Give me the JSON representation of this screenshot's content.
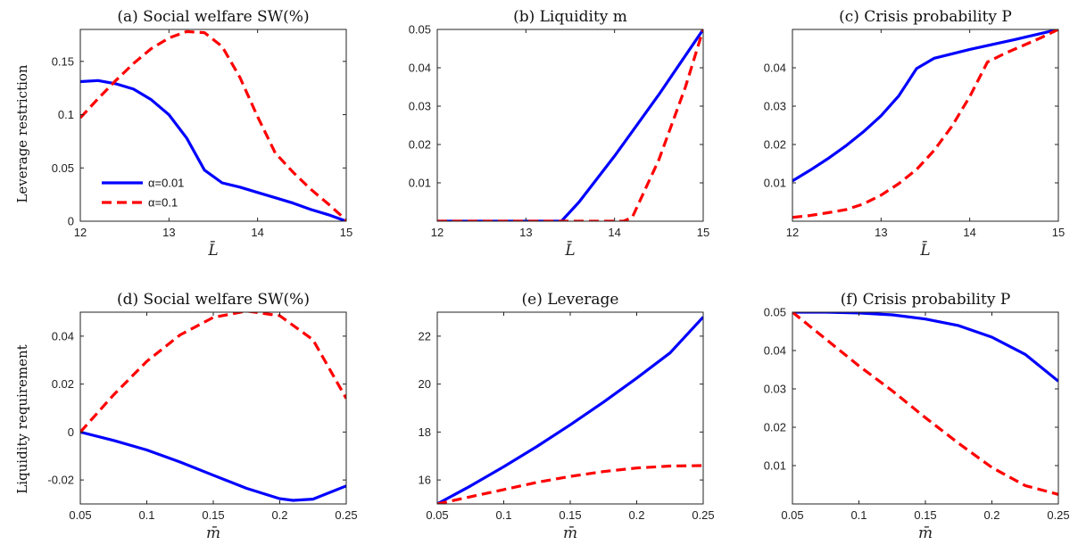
{
  "row_labels": [
    "Leverage restriction",
    "Liquidity requirement"
  ],
  "legend": {
    "position": "lower-left of panel (a)",
    "entries": [
      {
        "label": "α=0.01",
        "color": "#0000ff",
        "style": "solid"
      },
      {
        "label": "α=0.1",
        "color": "#ff0000",
        "style": "dashed"
      }
    ]
  },
  "chart_data": [
    {
      "type": "line",
      "title": "(a) Social welfare SW(%)",
      "xlabel": "L̄",
      "xlim": [
        12,
        15
      ],
      "ylim": [
        0,
        0.18
      ],
      "xticks": [
        12,
        13,
        14,
        15
      ],
      "xtick_labels": [
        "12",
        "13",
        "14",
        "15"
      ],
      "yticks": [
        0,
        0.05,
        0.1,
        0.15
      ],
      "ytick_labels": [
        "0",
        "0.05",
        "0.1",
        "0.15"
      ],
      "series": [
        {
          "name": "α=0.01",
          "color": "#0000ff",
          "dash": false,
          "x": [
            12,
            12.2,
            12.4,
            12.6,
            12.8,
            13.0,
            13.2,
            13.4,
            13.6,
            13.8,
            14.0,
            14.2,
            14.4,
            14.6,
            14.8,
            15.0
          ],
          "y": [
            0.131,
            0.132,
            0.129,
            0.124,
            0.114,
            0.1,
            0.078,
            0.048,
            0.036,
            0.032,
            0.027,
            0.022,
            0.017,
            0.011,
            0.006,
            0.0
          ]
        },
        {
          "name": "α=0.1",
          "color": "#ff0000",
          "dash": true,
          "x": [
            12,
            12.2,
            12.4,
            12.6,
            12.8,
            13.0,
            13.2,
            13.4,
            13.6,
            13.8,
            14.0,
            14.2,
            14.4,
            14.6,
            14.8,
            15.0
          ],
          "y": [
            0.097,
            0.115,
            0.132,
            0.148,
            0.162,
            0.172,
            0.178,
            0.177,
            0.164,
            0.135,
            0.098,
            0.064,
            0.046,
            0.03,
            0.016,
            0.001
          ]
        }
      ]
    },
    {
      "type": "line",
      "title": "(b) Liquidity m",
      "xlabel": "L̄",
      "xlim": [
        12,
        15
      ],
      "ylim": [
        0,
        0.05
      ],
      "xticks": [
        12,
        13,
        14,
        15
      ],
      "xtick_labels": [
        "12",
        "13",
        "14",
        "15"
      ],
      "yticks": [
        0.01,
        0.02,
        0.03,
        0.04,
        0.05
      ],
      "ytick_labels": [
        "0.01",
        "0.02",
        "0.03",
        "0.04",
        "0.05"
      ],
      "series": [
        {
          "name": "α=0.01",
          "color": "#0000ff",
          "dash": false,
          "x": [
            12,
            13.4,
            13.6,
            14.0,
            14.5,
            15.0
          ],
          "y": [
            0,
            0,
            0.005,
            0.017,
            0.033,
            0.05
          ]
        },
        {
          "name": "α=0.1",
          "color": "#ff0000",
          "dash": true,
          "x": [
            12,
            14.1,
            14.2,
            14.5,
            14.8,
            15.0
          ],
          "y": [
            0,
            0,
            0.001,
            0.016,
            0.035,
            0.05
          ]
        }
      ]
    },
    {
      "type": "line",
      "title": "(c) Crisis probability P",
      "xlabel": "L̄",
      "xlim": [
        12,
        15
      ],
      "ylim": [
        0,
        0.05
      ],
      "xticks": [
        12,
        13,
        14,
        15
      ],
      "xtick_labels": [
        "12",
        "13",
        "14",
        "15"
      ],
      "yticks": [
        0.01,
        0.02,
        0.03,
        0.04
      ],
      "ytick_labels": [
        "0.01",
        "0.02",
        "0.03",
        "0.04"
      ],
      "series": [
        {
          "name": "α=0.01",
          "color": "#0000ff",
          "dash": false,
          "x": [
            12,
            12.2,
            12.4,
            12.6,
            12.8,
            13.0,
            13.2,
            13.4,
            13.6,
            14.0,
            14.5,
            15.0
          ],
          "y": [
            0.0105,
            0.0133,
            0.0163,
            0.0196,
            0.0233,
            0.0275,
            0.0327,
            0.0398,
            0.0425,
            0.0448,
            0.0473,
            0.05
          ]
        },
        {
          "name": "α=0.1",
          "color": "#ff0000",
          "dash": true,
          "x": [
            12,
            12.2,
            12.4,
            12.6,
            12.8,
            13.0,
            13.2,
            13.4,
            13.6,
            13.8,
            14.0,
            14.2,
            14.4,
            14.6,
            14.8,
            15.0
          ],
          "y": [
            0.001,
            0.0015,
            0.0022,
            0.003,
            0.0045,
            0.0068,
            0.0098,
            0.0135,
            0.0185,
            0.0248,
            0.0325,
            0.0415,
            0.0438,
            0.0458,
            0.0478,
            0.05
          ]
        }
      ]
    },
    {
      "type": "line",
      "title": "(d) Social welfare SW(%)",
      "xlabel": "m̄",
      "xlim": [
        0.05,
        0.25
      ],
      "ylim": [
        -0.03,
        0.05
      ],
      "xticks": [
        0.05,
        0.1,
        0.15,
        0.2,
        0.25
      ],
      "xtick_labels": [
        "0.05",
        "0.1",
        "0.15",
        "0.2",
        "0.25"
      ],
      "yticks": [
        -0.02,
        0,
        0.02,
        0.04
      ],
      "ytick_labels": [
        "-0.02",
        "0",
        "0.02",
        "0.04"
      ],
      "series": [
        {
          "name": "α=0.01",
          "color": "#0000ff",
          "dash": false,
          "x": [
            0.05,
            0.075,
            0.1,
            0.125,
            0.15,
            0.175,
            0.2,
            0.21,
            0.225,
            0.25
          ],
          "y": [
            0.0,
            -0.0035,
            -0.0075,
            -0.0125,
            -0.018,
            -0.0235,
            -0.0278,
            -0.0285,
            -0.028,
            -0.0225
          ]
        },
        {
          "name": "α=0.1",
          "color": "#ff0000",
          "dash": true,
          "x": [
            0.05,
            0.075,
            0.1,
            0.125,
            0.15,
            0.175,
            0.2,
            0.225,
            0.25
          ],
          "y": [
            0.0,
            0.0155,
            0.0295,
            0.0405,
            0.0478,
            0.0505,
            0.0485,
            0.0385,
            0.014
          ]
        }
      ]
    },
    {
      "type": "line",
      "title": "(e) Leverage",
      "xlabel": "m̄",
      "xlim": [
        0.05,
        0.25
      ],
      "ylim": [
        15,
        23
      ],
      "xticks": [
        0.05,
        0.1,
        0.15,
        0.2,
        0.25
      ],
      "xtick_labels": [
        "0.05",
        "0.1",
        "0.15",
        "0.2",
        "0.25"
      ],
      "yticks": [
        16,
        18,
        20,
        22
      ],
      "ytick_labels": [
        "16",
        "18",
        "20",
        "22"
      ],
      "series": [
        {
          "name": "α=0.01",
          "color": "#0000ff",
          "dash": false,
          "x": [
            0.05,
            0.075,
            0.1,
            0.125,
            0.15,
            0.175,
            0.2,
            0.225,
            0.25
          ],
          "y": [
            15.0,
            15.75,
            16.55,
            17.4,
            18.3,
            19.25,
            20.25,
            21.3,
            22.8
          ]
        },
        {
          "name": "α=0.1",
          "color": "#ff0000",
          "dash": true,
          "x": [
            0.05,
            0.075,
            0.1,
            0.125,
            0.15,
            0.175,
            0.2,
            0.225,
            0.25
          ],
          "y": [
            15.0,
            15.3,
            15.6,
            15.9,
            16.15,
            16.35,
            16.5,
            16.58,
            16.6
          ]
        }
      ]
    },
    {
      "type": "line",
      "title": "(f) Crisis probability P",
      "xlabel": "m̄",
      "xlim": [
        0.05,
        0.25
      ],
      "ylim": [
        0,
        0.05
      ],
      "xticks": [
        0.05,
        0.1,
        0.15,
        0.2,
        0.25
      ],
      "xtick_labels": [
        "0.05",
        "0.1",
        "0.15",
        "0.2",
        "0.25"
      ],
      "yticks": [
        0.01,
        0.02,
        0.03,
        0.04,
        0.05
      ],
      "ytick_labels": [
        "0.01",
        "0.02",
        "0.03",
        "0.04",
        "0.05"
      ],
      "series": [
        {
          "name": "α=0.01",
          "color": "#0000ff",
          "dash": false,
          "x": [
            0.05,
            0.075,
            0.1,
            0.125,
            0.15,
            0.175,
            0.2,
            0.225,
            0.25
          ],
          "y": [
            0.05,
            0.05,
            0.0498,
            0.0493,
            0.0482,
            0.0465,
            0.0435,
            0.039,
            0.032
          ]
        },
        {
          "name": "α=0.1",
          "color": "#ff0000",
          "dash": true,
          "x": [
            0.05,
            0.075,
            0.1,
            0.125,
            0.15,
            0.175,
            0.2,
            0.225,
            0.25
          ],
          "y": [
            0.05,
            0.043,
            0.036,
            0.0295,
            0.0225,
            0.0158,
            0.0095,
            0.0048,
            0.0025
          ]
        }
      ]
    }
  ]
}
